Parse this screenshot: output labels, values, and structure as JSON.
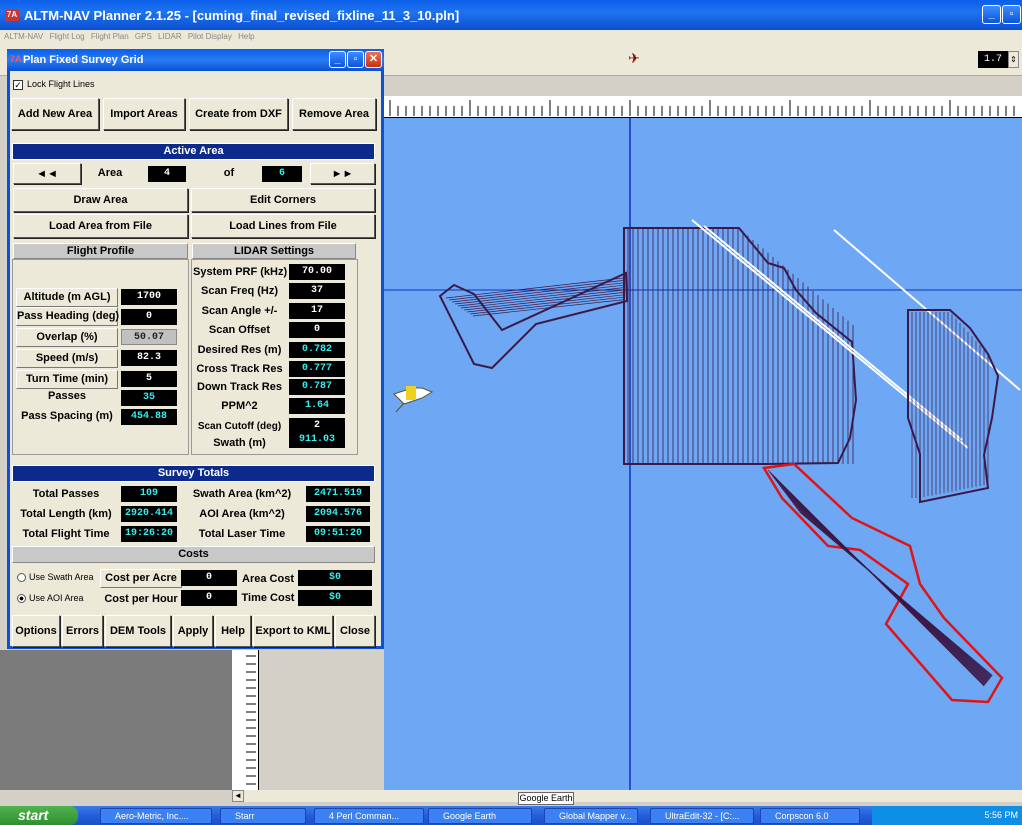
{
  "app": {
    "title": "ALTM-NAV Planner 2.1.25 - [cuming_final_revised_fixline_11_3_10.pln]",
    "menu": [
      "ALTM-NAV",
      "Flight Log",
      "Flight Plan",
      "GPS",
      "LIDAR",
      "Pilot Display",
      "Help"
    ],
    "zoom": "1.7",
    "google_earth_label": "Google Earth"
  },
  "dialog": {
    "title": "Plan Fixed Survey Grid",
    "lock_label": "Lock Flight Lines",
    "top_buttons": [
      "Add New Area",
      "Import Areas",
      "Create from DXF",
      "Remove Area"
    ],
    "active_area": {
      "header": "Active Area",
      "prev": "◄◄",
      "next": "►►",
      "area_label": "Area",
      "area_value": "4",
      "of_label": "of",
      "total_value": "6",
      "draw_area": "Draw Area",
      "edit_corners": "Edit Corners",
      "load_area": "Load Area from File",
      "load_lines": "Load Lines from File"
    },
    "flight_profile": {
      "header": "Flight Profile",
      "altitude_label": "Altitude (m AGL)",
      "altitude": "1700",
      "heading_label": "Pass Heading (deg)",
      "heading": "0",
      "overlap_label": "Overlap (%)",
      "overlap": "50.07",
      "speed_label": "Speed (m/s)",
      "speed": "82.3",
      "turn_label": "Turn Time (min)",
      "turn": "5",
      "passes_label": "Passes",
      "passes": "35",
      "spacing_label": "Pass Spacing (m)",
      "spacing": "454.88"
    },
    "lidar": {
      "header": "LIDAR Settings",
      "prf_label": "System PRF (kHz)",
      "prf": "70.00",
      "freq_label": "Scan Freq (Hz)",
      "freq": "37",
      "angle_label": "Scan Angle +/-",
      "angle": "17",
      "offset_label": "Scan Offset",
      "offset": "0",
      "desired_label": "Desired Res (m)",
      "desired": "0.782",
      "cross_label": "Cross Track Res",
      "cross": "0.777",
      "down_label": "Down Track Res",
      "down": "0.787",
      "ppm_label": "PPM^2",
      "ppm": "1.64",
      "cutoff_label": "Scan Cutoff (deg)",
      "cutoff": "2",
      "swath_label": "Swath (m)",
      "swath": "911.03"
    },
    "totals": {
      "header": "Survey Totals",
      "passes_label": "Total Passes",
      "passes": "109",
      "length_label": "Total Length (km)",
      "length": "2920.414",
      "time_label": "Total Flight Time",
      "time": "19:26:20",
      "swath_area_label": "Swath Area (km^2)",
      "swath_area": "2471.519",
      "aoi_label": "AOI Area (km^2)",
      "aoi": "2094.576",
      "laser_label": "Total Laser Time",
      "laser": "09:51:20"
    },
    "costs": {
      "header": "Costs",
      "swath_radio": "Use Swath Area",
      "aoi_radio": "Use AOI Area",
      "acre_label": "Cost per Acre",
      "acre": "0",
      "hour_label": "Cost per Hour",
      "hour": "0",
      "area_cost_label": "Area Cost",
      "area_cost": "$0",
      "time_cost_label": "Time Cost",
      "time_cost": "$0"
    },
    "bottom_buttons": [
      "Options",
      "Errors",
      "DEM Tools",
      "Apply",
      "Help",
      "Export to KML",
      "Close"
    ]
  },
  "taskbar": {
    "start": "start",
    "tasks": [
      "Aero-Metric, Inc....",
      "Starr",
      "4 Perl Comman...",
      "Google Earth",
      "Global Mapper v...",
      "UltraEdit-32 - [C:...",
      "Corpscon 6.0"
    ],
    "clock": "5:56 PM"
  }
}
